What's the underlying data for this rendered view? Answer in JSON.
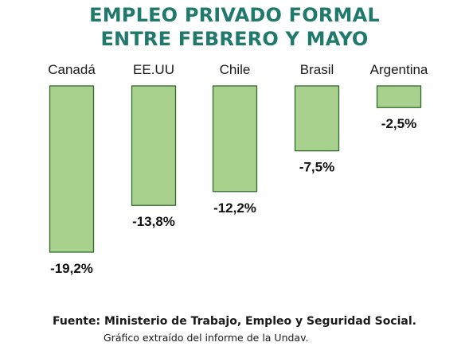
{
  "header": {
    "title_line1": "EMPLEO PRIVADO FORMAL",
    "title_line2": "ENTRE FEBRERO Y MAYO"
  },
  "footer": {
    "source": "Fuente: Ministerio de Trabajo, Empleo y Seguridad Social.",
    "note": "Gráfico extraído del informe de la Undav."
  },
  "colors": {
    "bar_fill": "#a9d18e",
    "bar_stroke": "#2e6a2e",
    "title": "#1f7a6c"
  },
  "chart_data": {
    "type": "bar",
    "categories": [
      "Canadá",
      "EE.UU",
      "Chile",
      "Brasil",
      "Argentina"
    ],
    "values": [
      -19.2,
      -13.8,
      -12.2,
      -7.5,
      -2.5
    ],
    "labels": [
      "-19,2%",
      "-13,8%",
      "-12,2%",
      "-7,5%",
      "-2,5%"
    ],
    "title": "EMPLEO PRIVADO FORMAL ENTRE FEBRERO Y MAYO",
    "xlabel": "",
    "ylabel": "",
    "ylim": [
      -20,
      0
    ],
    "grid": false,
    "legend": "none"
  }
}
